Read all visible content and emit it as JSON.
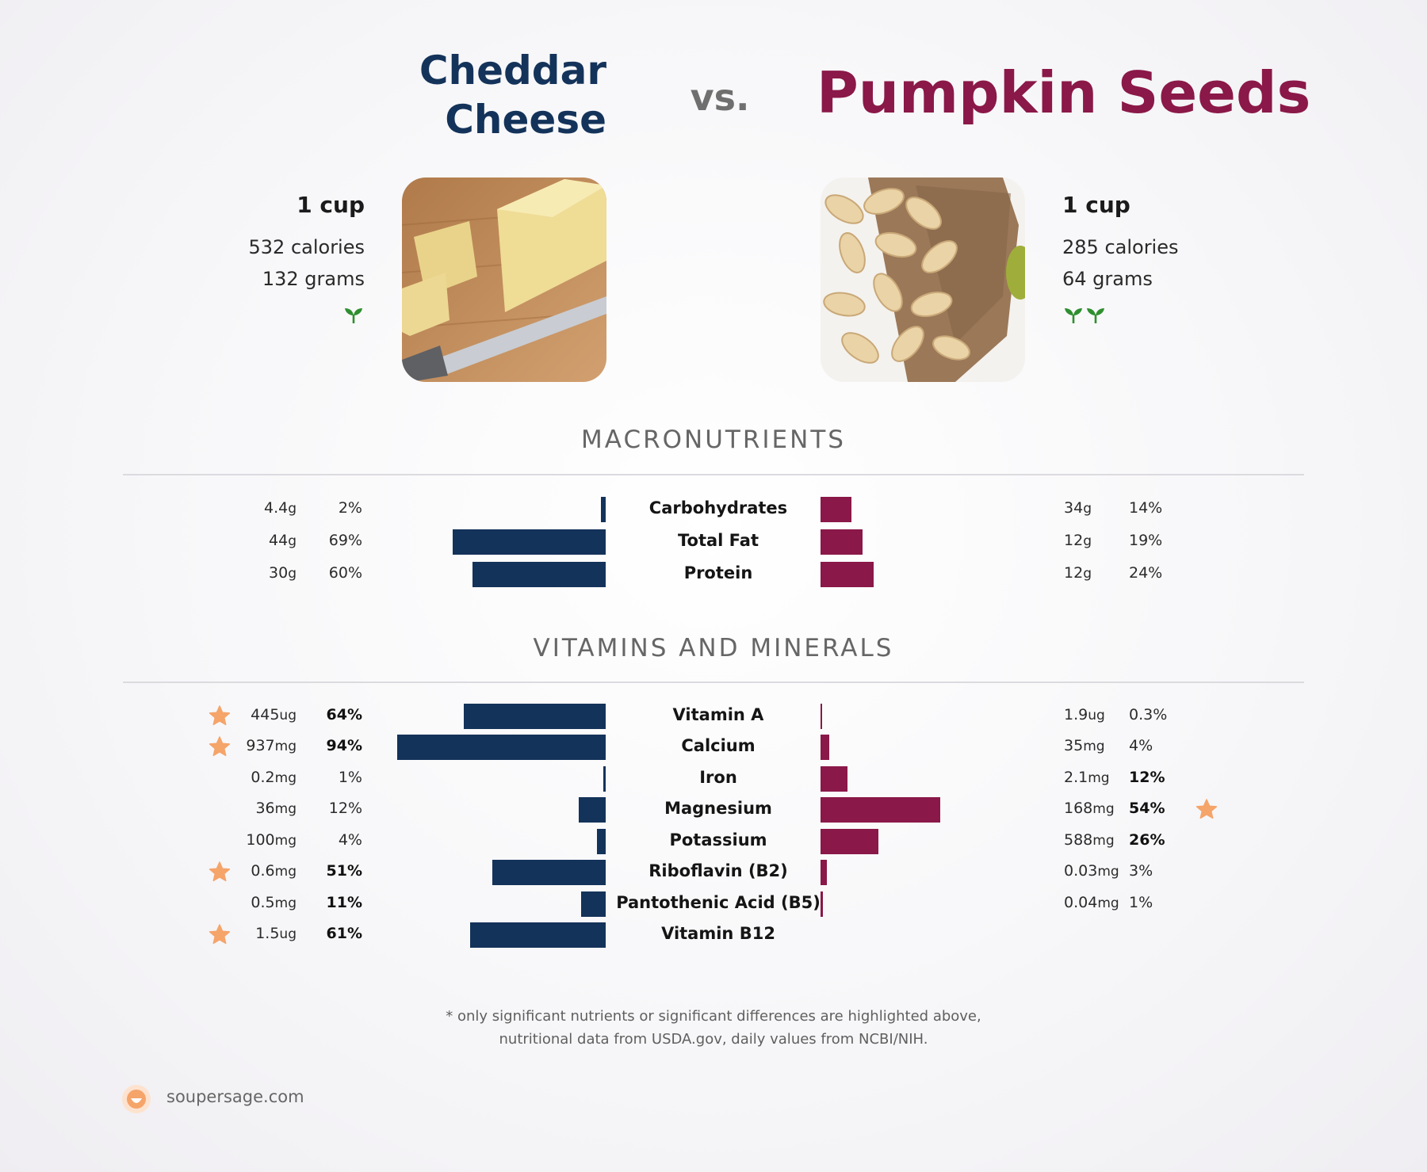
{
  "header": {
    "left_title_line1": "Cheddar",
    "left_title_line2": "Cheese",
    "vs": "vs.",
    "right_title": "Pumpkin Seeds"
  },
  "foods": {
    "left": {
      "serving": "1 cup",
      "calories": "532 calories",
      "grams": "132 grams",
      "sprouts": 1,
      "image_icon": "cheddar-cheese-photo"
    },
    "right": {
      "serving": "1 cup",
      "calories": "285 calories",
      "grams": "64 grams",
      "sprouts": 2,
      "image_icon": "pumpkin-seeds-photo"
    }
  },
  "colors": {
    "left_accent": "#14335a",
    "right_accent": "#8a1848",
    "star": "#f5a46a",
    "sprout": "#2f8f2f"
  },
  "sections": {
    "macros": "MACRONUTRIENTS",
    "vitamins": "VITAMINS AND MINERALS"
  },
  "chart_data": [
    {
      "type": "bar",
      "name": "macronutrients",
      "orientation": "horizontal-diverging",
      "categories": [
        "Carbohydrates",
        "Total Fat",
        "Protein"
      ],
      "series": [
        {
          "name": "Cheddar Cheese",
          "percent": [
            2,
            69,
            60
          ],
          "amount": [
            "4.4",
            "44",
            "30"
          ],
          "unit": [
            "g",
            "g",
            "g"
          ],
          "percent_label": [
            "2%",
            "69%",
            "60%"
          ],
          "highlight": [
            false,
            false,
            false
          ]
        },
        {
          "name": "Pumpkin Seeds",
          "percent": [
            14,
            19,
            24
          ],
          "amount": [
            "34",
            "12",
            "12"
          ],
          "unit": [
            "g",
            "g",
            "g"
          ],
          "percent_label": [
            "14%",
            "19%",
            "24%"
          ],
          "highlight": [
            false,
            false,
            false
          ]
        }
      ]
    },
    {
      "type": "bar",
      "name": "vitamins_and_minerals",
      "orientation": "horizontal-diverging",
      "categories": [
        "Vitamin A",
        "Calcium",
        "Iron",
        "Magnesium",
        "Potassium",
        "Riboflavin (B2)",
        "Pantothenic Acid (B5)",
        "Vitamin B12"
      ],
      "series": [
        {
          "name": "Cheddar Cheese",
          "percent": [
            64,
            94,
            1,
            12,
            4,
            51,
            11,
            61
          ],
          "amount": [
            "445",
            "937",
            "0.2",
            "36",
            "100",
            "0.6",
            "0.5",
            "1.5"
          ],
          "unit": [
            "ug",
            "mg",
            "mg",
            "mg",
            "mg",
            "mg",
            "mg",
            "ug"
          ],
          "percent_label": [
            "64%",
            "94%",
            "1%",
            "12%",
            "4%",
            "51%",
            "11%",
            "61%"
          ],
          "bold": [
            true,
            true,
            false,
            false,
            false,
            true,
            true,
            true
          ],
          "star": [
            true,
            true,
            false,
            false,
            false,
            true,
            false,
            true
          ]
        },
        {
          "name": "Pumpkin Seeds",
          "percent": [
            0.3,
            4,
            12,
            54,
            26,
            3,
            1,
            null
          ],
          "amount": [
            "1.9",
            "35",
            "2.1",
            "168",
            "588",
            "0.03",
            "0.04",
            ""
          ],
          "unit": [
            "ug",
            "mg",
            "mg",
            "mg",
            "mg",
            "mg",
            "mg",
            ""
          ],
          "percent_label": [
            "0.3%",
            "4%",
            "12%",
            "54%",
            "26%",
            "3%",
            "1%",
            ""
          ],
          "bold": [
            false,
            false,
            true,
            true,
            true,
            false,
            false,
            false
          ],
          "star": [
            false,
            false,
            false,
            true,
            false,
            false,
            false,
            false
          ]
        }
      ]
    }
  ],
  "footnote": {
    "line1": "* only significant nutrients or significant differences are highlighted above,",
    "line2": "nutritional data from USDA.gov, daily values from NCBI/NIH."
  },
  "brand": "soupersage.com"
}
